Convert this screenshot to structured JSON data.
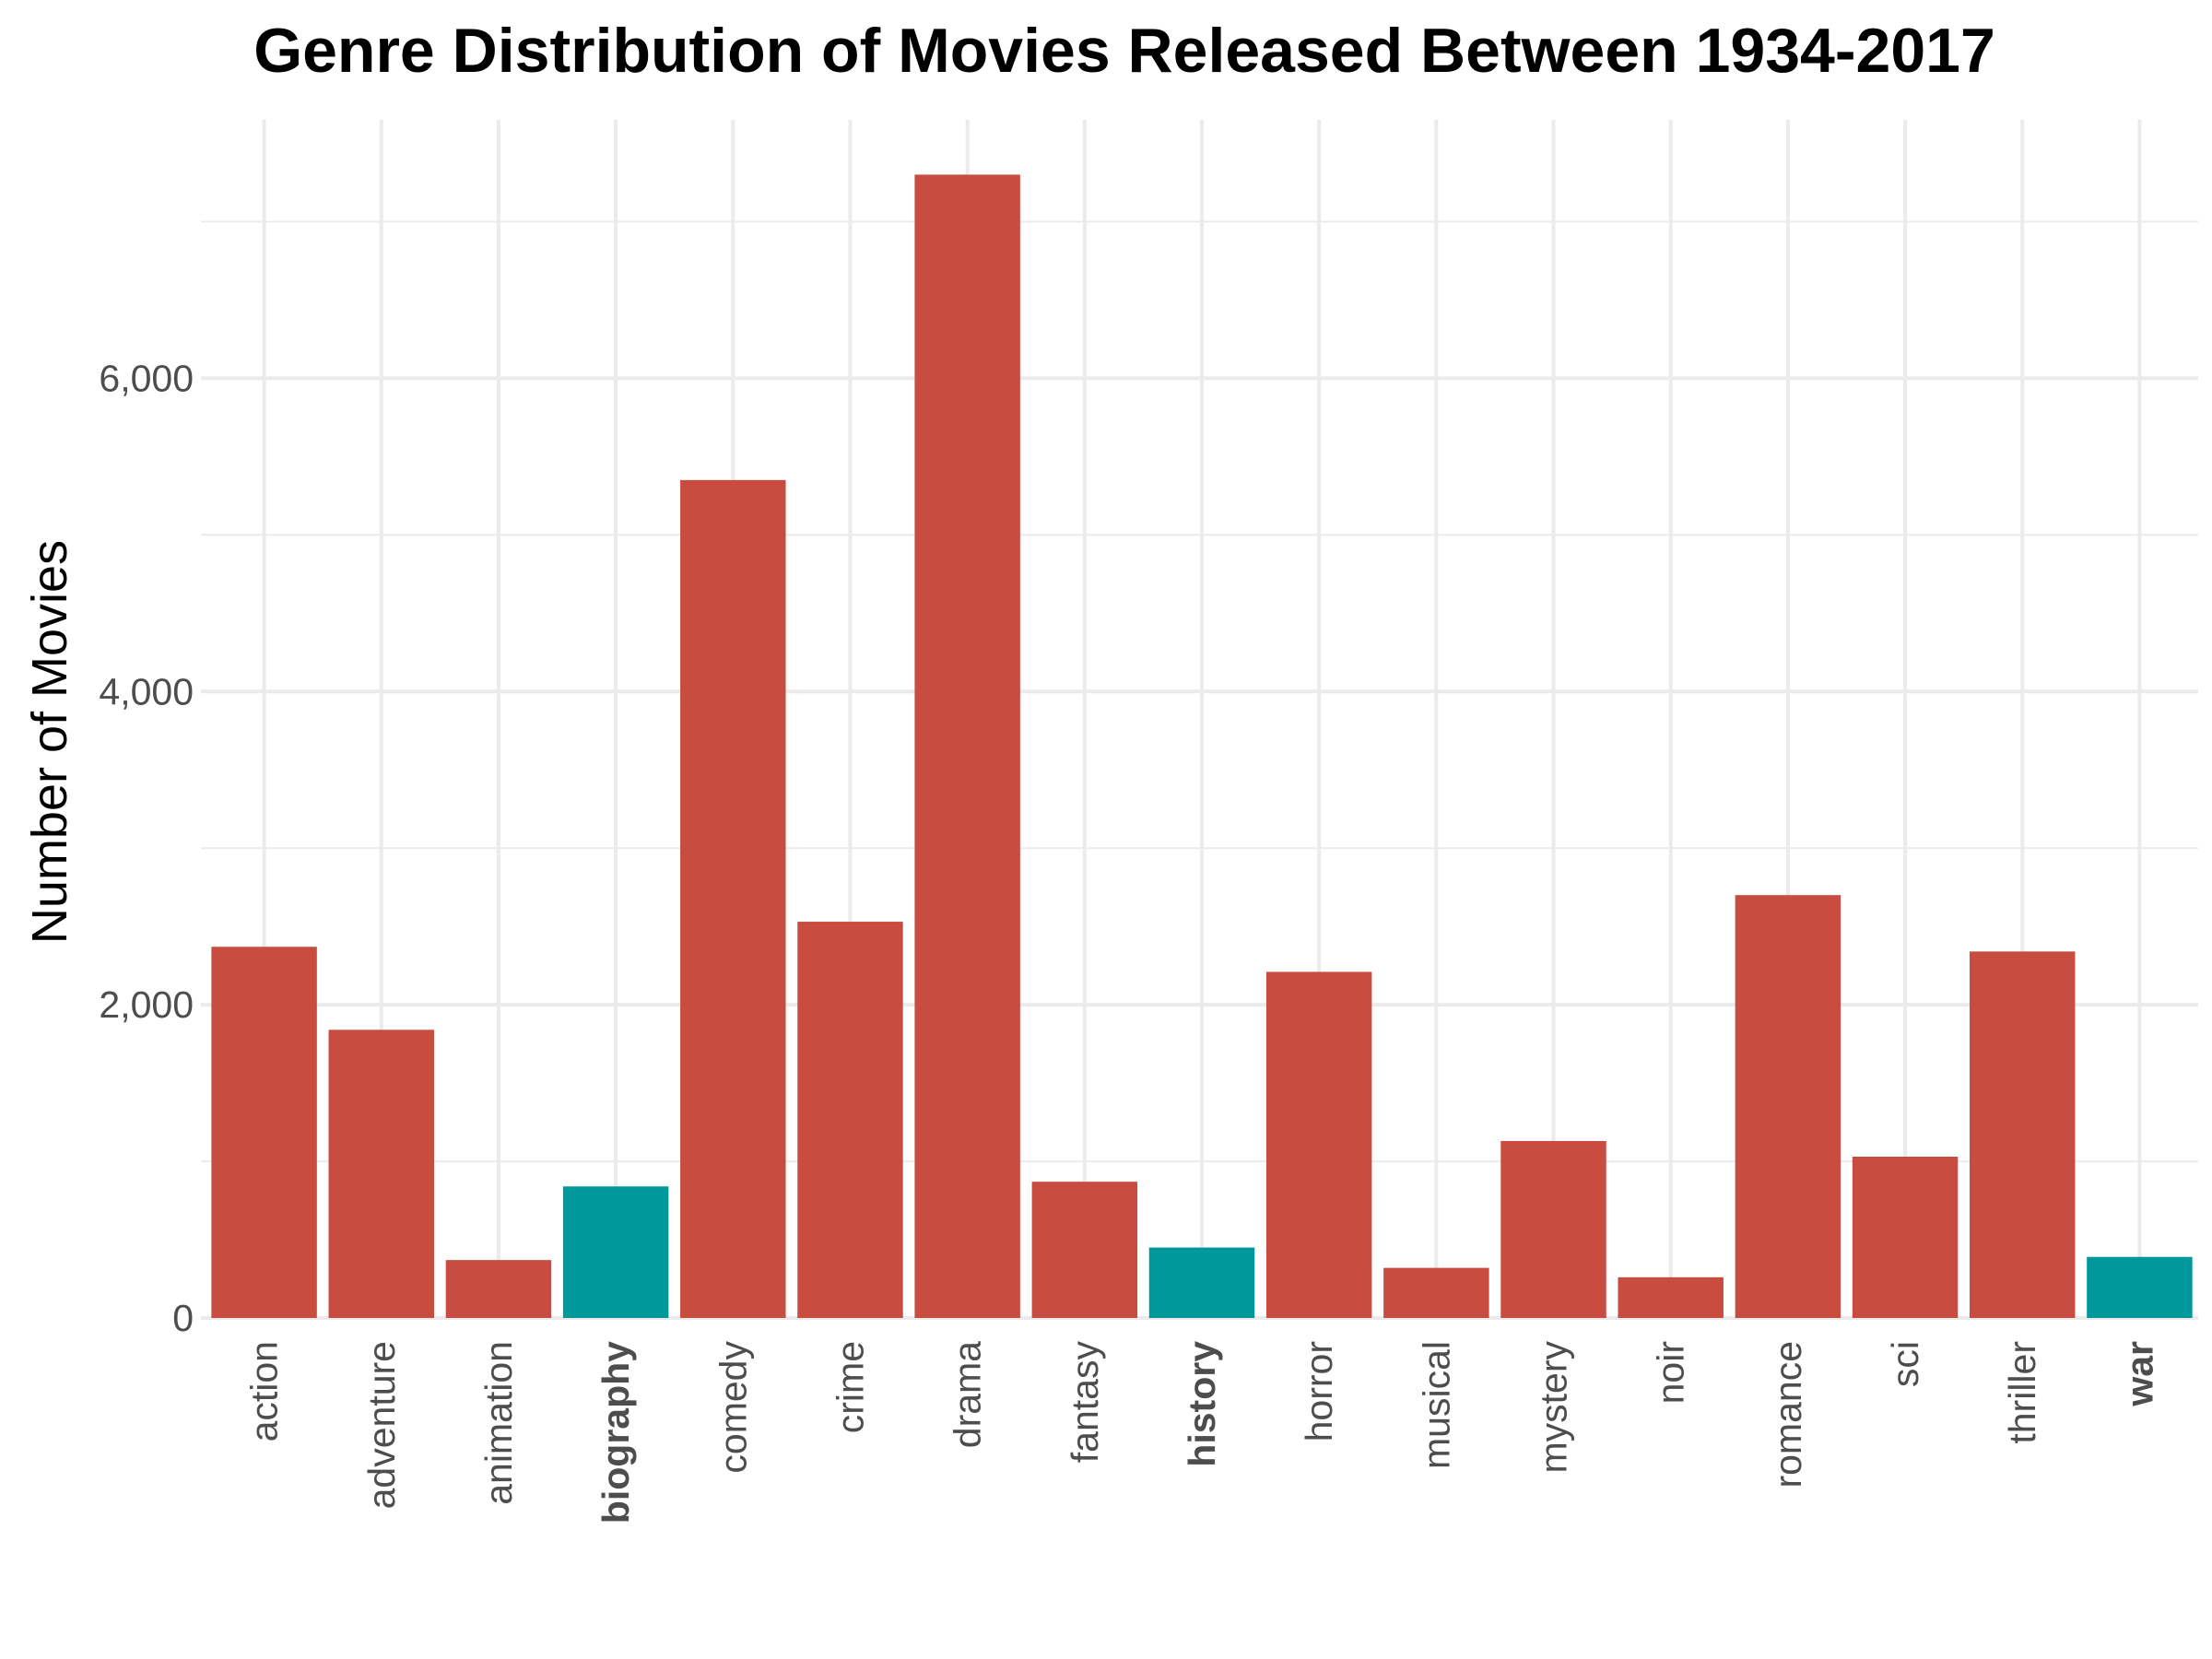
{
  "chart_data": {
    "type": "bar",
    "title": "Genre Distribution of Movies Released Between 1934-2017",
    "xlabel": "",
    "ylabel": "Number of Movies",
    "ylim": [
      0,
      7650
    ],
    "yticks": [
      0,
      2000,
      4000,
      6000
    ],
    "ytick_labels": [
      "0",
      "2,000",
      "4,000",
      "6,000"
    ],
    "grid": true,
    "legend": "none",
    "colors": {
      "default": "#C94C40",
      "highlight": "#00999B",
      "grid": "#EBEBEB",
      "tick_text": "#4D4D4D"
    },
    "categories": [
      "action",
      "adventure",
      "animation",
      "biography",
      "comedy",
      "crime",
      "drama",
      "fantasy",
      "history",
      "horror",
      "musical",
      "mystery",
      "noir",
      "romance",
      "sci",
      "thriller",
      "war"
    ],
    "values": [
      2370,
      1840,
      370,
      840,
      5350,
      2530,
      7300,
      870,
      450,
      2210,
      320,
      1130,
      260,
      2700,
      1030,
      2340,
      390
    ],
    "highlighted": [
      "biography",
      "history",
      "war"
    ]
  }
}
